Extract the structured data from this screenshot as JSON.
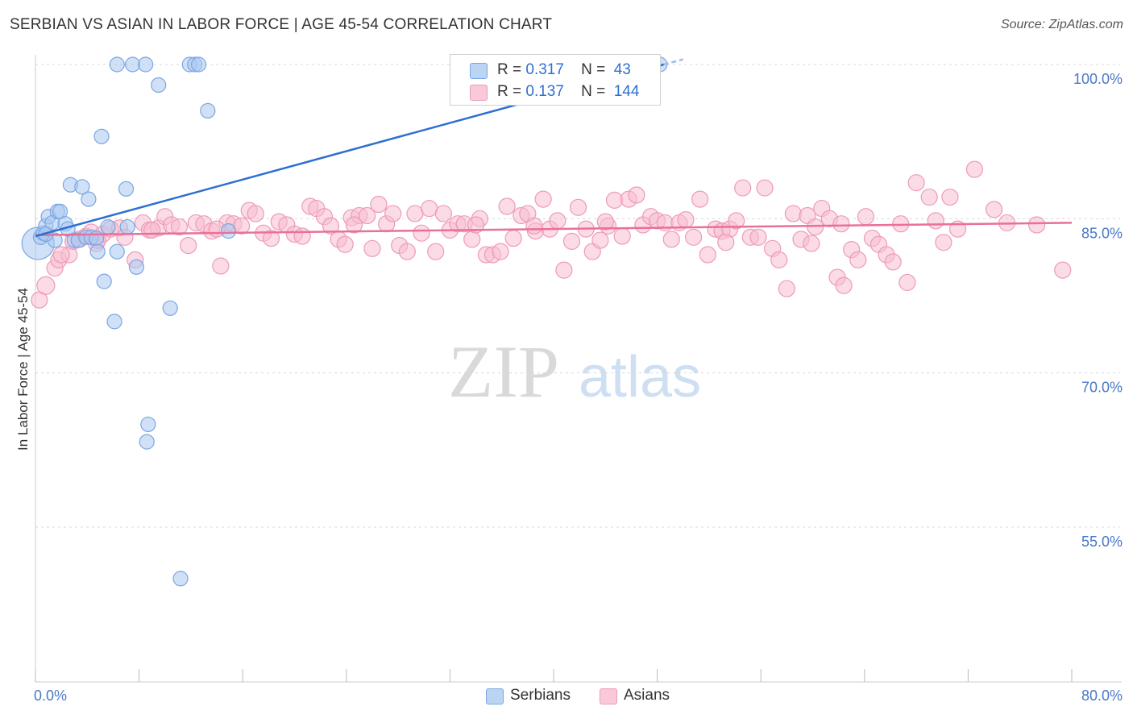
{
  "title": "SERBIAN VS ASIAN IN LABOR FORCE | AGE 45-54 CORRELATION CHART",
  "source": "Source: ZipAtlas.com",
  "watermark": {
    "zip": "ZIP",
    "atlas": "atlas"
  },
  "legend_top": {
    "serbians": {
      "r_label": "R =",
      "r_value": "0.317",
      "n_label": "N =",
      "n_value": "43"
    },
    "asians": {
      "r_label": "R =",
      "r_value": "0.137",
      "n_label": "N =",
      "n_value": "144"
    }
  },
  "legend_bottom": {
    "serbians": "Serbians",
    "asians": "Asians"
  },
  "colors": {
    "serbian_fill": "#aac8f0",
    "serbian_stroke": "#7aa6e3",
    "serbian_line": "#2f6fd1",
    "asian_fill": "#f7bdd0",
    "asian_stroke": "#ee9ab7",
    "asian_line": "#e8709a",
    "tick_text": "#4a78c8",
    "grid": "#d8d8d8"
  },
  "chart_data": {
    "type": "scatter",
    "title": "SERBIAN VS ASIAN IN LABOR FORCE | AGE 45-54 CORRELATION CHART",
    "xlabel": "",
    "ylabel": "In Labor Force | Age 45-54",
    "xlim": [
      0,
      80
    ],
    "ylim": [
      40,
      102
    ],
    "x_tick_labels": [
      "0.0%",
      "80.0%"
    ],
    "y_ticks": [
      100,
      85,
      70,
      55
    ],
    "y_tick_labels": [
      "100.0%",
      "85.0%",
      "70.0%",
      "55.0%"
    ],
    "series": [
      {
        "name": "Serbians",
        "r": 0.317,
        "n": 43,
        "trend": {
          "x": [
            0,
            48.5
          ],
          "y": [
            83.3,
            100.0
          ]
        },
        "trend_dashed": {
          "x": [
            48.5,
            50
          ],
          "y": [
            100.0,
            100.5
          ]
        },
        "points": [
          [
            0.2,
            82.6,
            20
          ],
          [
            0.4,
            83.2,
            9
          ],
          [
            0.6,
            83.6,
            9
          ],
          [
            0.8,
            84.3,
            9
          ],
          [
            1.0,
            85.2,
            9
          ],
          [
            1.3,
            84.6,
            9
          ],
          [
            1.5,
            82.9,
            9
          ],
          [
            1.7,
            85.7,
            9
          ],
          [
            1.9,
            85.7,
            9
          ],
          [
            2.3,
            84.5,
            9
          ],
          [
            2.5,
            84.0,
            9
          ],
          [
            2.7,
            88.3,
            9
          ],
          [
            3.0,
            82.9,
            9
          ],
          [
            3.3,
            82.9,
            9
          ],
          [
            3.6,
            88.1,
            9
          ],
          [
            3.9,
            83.2,
            9
          ],
          [
            4.1,
            86.9,
            9
          ],
          [
            4.3,
            83.2,
            9
          ],
          [
            4.7,
            83.1,
            9
          ],
          [
            4.8,
            81.8,
            9
          ],
          [
            5.1,
            93.0,
            9
          ],
          [
            5.3,
            78.9,
            9
          ],
          [
            5.6,
            84.2,
            9
          ],
          [
            6.1,
            75.0,
            9
          ],
          [
            6.3,
            81.8,
            9
          ],
          [
            6.3,
            100.0,
            9
          ],
          [
            7.0,
            87.9,
            9
          ],
          [
            7.1,
            84.2,
            9
          ],
          [
            7.5,
            100.0,
            9
          ],
          [
            7.8,
            80.3,
            9
          ],
          [
            8.5,
            100.0,
            9
          ],
          [
            8.7,
            65.0,
            9
          ],
          [
            8.6,
            63.3,
            9
          ],
          [
            9.5,
            98.0,
            9
          ],
          [
            10.4,
            76.3,
            9
          ],
          [
            11.2,
            50.0,
            9
          ],
          [
            11.9,
            100.0,
            9
          ],
          [
            12.3,
            100.0,
            9
          ],
          [
            12.6,
            100.0,
            9
          ],
          [
            13.3,
            95.5,
            9
          ],
          [
            14.9,
            83.8,
            9
          ],
          [
            48.2,
            100.0,
            9
          ],
          [
            0.8,
            83.5,
            9
          ]
        ]
      },
      {
        "name": "Asians",
        "r": 0.137,
        "n": 144,
        "trend": {
          "x": [
            0,
            80
          ],
          "y": [
            83.4,
            84.6
          ]
        },
        "points": [
          [
            0.3,
            77.1,
            10
          ],
          [
            0.8,
            78.5,
            11
          ],
          [
            1.5,
            80.2,
            10
          ],
          [
            1.8,
            81.0,
            10
          ],
          [
            2.6,
            81.5,
            10
          ],
          [
            2.9,
            82.8,
            10
          ],
          [
            3.4,
            83.0,
            10
          ],
          [
            3.9,
            83.3,
            10
          ],
          [
            4.3,
            83.7,
            10
          ],
          [
            4.7,
            82.6,
            10
          ],
          [
            5.2,
            83.5,
            10
          ],
          [
            5.8,
            84.0,
            10
          ],
          [
            6.5,
            84.1,
            10
          ],
          [
            6.9,
            83.2,
            10
          ],
          [
            7.7,
            81.0,
            10
          ],
          [
            8.3,
            84.6,
            10
          ],
          [
            8.8,
            83.9,
            10
          ],
          [
            9.5,
            84.1,
            10
          ],
          [
            10.0,
            85.2,
            10
          ],
          [
            10.5,
            84.4,
            10
          ],
          [
            11.1,
            84.2,
            10
          ],
          [
            11.8,
            82.4,
            10
          ],
          [
            12.4,
            84.6,
            10
          ],
          [
            13.0,
            84.5,
            10
          ],
          [
            13.6,
            83.8,
            10
          ],
          [
            14.3,
            80.4,
            10
          ],
          [
            14.8,
            84.6,
            10
          ],
          [
            15.3,
            84.5,
            10
          ],
          [
            15.9,
            84.3,
            10
          ],
          [
            16.5,
            85.8,
            10
          ],
          [
            17.0,
            85.5,
            10
          ],
          [
            17.6,
            83.6,
            10
          ],
          [
            18.2,
            83.1,
            10
          ],
          [
            18.8,
            84.7,
            10
          ],
          [
            19.4,
            84.4,
            10
          ],
          [
            20.0,
            83.5,
            10
          ],
          [
            20.6,
            83.3,
            10
          ],
          [
            21.2,
            86.2,
            10
          ],
          [
            21.7,
            86.0,
            10
          ],
          [
            22.3,
            85.2,
            10
          ],
          [
            22.8,
            84.3,
            10
          ],
          [
            23.4,
            83.0,
            10
          ],
          [
            23.9,
            82.5,
            10
          ],
          [
            24.4,
            85.1,
            10
          ],
          [
            25.0,
            85.3,
            10
          ],
          [
            25.6,
            85.3,
            10
          ],
          [
            26.0,
            82.1,
            10
          ],
          [
            26.5,
            86.4,
            10
          ],
          [
            27.1,
            84.5,
            10
          ],
          [
            27.6,
            85.5,
            10
          ],
          [
            28.1,
            82.4,
            10
          ],
          [
            28.7,
            81.8,
            10
          ],
          [
            29.3,
            85.5,
            10
          ],
          [
            29.8,
            83.6,
            10
          ],
          [
            30.4,
            86.0,
            10
          ],
          [
            30.9,
            81.8,
            10
          ],
          [
            31.5,
            85.5,
            10
          ],
          [
            32.0,
            83.9,
            10
          ],
          [
            32.6,
            84.5,
            10
          ],
          [
            33.1,
            84.5,
            10
          ],
          [
            33.7,
            83.0,
            10
          ],
          [
            34.3,
            85.0,
            10
          ],
          [
            34.8,
            81.5,
            10
          ],
          [
            35.3,
            81.5,
            10
          ],
          [
            35.9,
            81.8,
            10
          ],
          [
            36.4,
            86.2,
            10
          ],
          [
            36.9,
            83.1,
            10
          ],
          [
            37.5,
            85.3,
            10
          ],
          [
            38.0,
            85.5,
            10
          ],
          [
            38.6,
            83.8,
            10
          ],
          [
            39.2,
            86.9,
            10
          ],
          [
            39.7,
            84.0,
            10
          ],
          [
            40.3,
            84.8,
            10
          ],
          [
            40.8,
            80.0,
            10
          ],
          [
            41.4,
            82.8,
            10
          ],
          [
            41.9,
            86.1,
            10
          ],
          [
            42.5,
            84.0,
            10
          ],
          [
            43.0,
            81.8,
            10
          ],
          [
            43.6,
            82.9,
            10
          ],
          [
            44.2,
            84.3,
            10
          ],
          [
            44.7,
            86.8,
            10
          ],
          [
            45.3,
            83.3,
            10
          ],
          [
            45.8,
            86.9,
            10
          ],
          [
            46.4,
            87.3,
            10
          ],
          [
            46.9,
            84.4,
            10
          ],
          [
            47.5,
            85.2,
            10
          ],
          [
            48.0,
            84.8,
            10
          ],
          [
            48.6,
            84.6,
            10
          ],
          [
            49.1,
            83.0,
            10
          ],
          [
            49.7,
            84.6,
            10
          ],
          [
            50.2,
            84.9,
            10
          ],
          [
            50.8,
            83.2,
            10
          ],
          [
            51.3,
            86.9,
            10
          ],
          [
            51.9,
            81.5,
            10
          ],
          [
            52.5,
            84.0,
            10
          ],
          [
            53.0,
            83.8,
            10
          ],
          [
            53.6,
            84.0,
            10
          ],
          [
            54.1,
            84.8,
            10
          ],
          [
            54.6,
            88.0,
            10
          ],
          [
            55.2,
            83.2,
            10
          ],
          [
            55.8,
            83.2,
            10
          ],
          [
            56.3,
            88.0,
            10
          ],
          [
            56.9,
            82.1,
            10
          ],
          [
            57.4,
            81.0,
            10
          ],
          [
            58.0,
            78.2,
            10
          ],
          [
            58.5,
            85.5,
            10
          ],
          [
            59.1,
            83.0,
            10
          ],
          [
            59.6,
            85.3,
            10
          ],
          [
            60.2,
            84.2,
            10
          ],
          [
            60.7,
            86.0,
            10
          ],
          [
            61.3,
            85.0,
            10
          ],
          [
            61.9,
            79.3,
            10
          ],
          [
            62.4,
            78.5,
            10
          ],
          [
            63.0,
            82.0,
            10
          ],
          [
            63.5,
            81.0,
            10
          ],
          [
            64.1,
            85.2,
            10
          ],
          [
            64.6,
            83.1,
            10
          ],
          [
            65.1,
            82.5,
            10
          ],
          [
            65.7,
            81.5,
            10
          ],
          [
            66.2,
            80.8,
            10
          ],
          [
            66.8,
            84.5,
            10
          ],
          [
            67.3,
            78.8,
            10
          ],
          [
            68.0,
            88.5,
            10
          ],
          [
            69.0,
            87.1,
            10
          ],
          [
            69.5,
            84.8,
            10
          ],
          [
            70.1,
            82.7,
            10
          ],
          [
            70.6,
            87.1,
            10
          ],
          [
            71.2,
            84.0,
            10
          ],
          [
            72.5,
            89.8,
            10
          ],
          [
            74.0,
            85.9,
            10
          ],
          [
            77.3,
            84.4,
            10
          ],
          [
            79.3,
            80.0,
            10
          ],
          [
            2.0,
            81.5,
            10
          ],
          [
            4.8,
            82.9,
            10
          ],
          [
            9.0,
            83.9,
            10
          ],
          [
            14.0,
            84.0,
            10
          ],
          [
            24.6,
            84.4,
            10
          ],
          [
            34.0,
            84.4,
            10
          ],
          [
            38.5,
            84.3,
            10
          ],
          [
            44.0,
            84.7,
            10
          ],
          [
            53.3,
            82.7,
            10
          ],
          [
            59.9,
            82.6,
            10
          ],
          [
            75.0,
            84.6,
            10
          ],
          [
            62.2,
            84.5,
            10
          ]
        ]
      }
    ]
  }
}
